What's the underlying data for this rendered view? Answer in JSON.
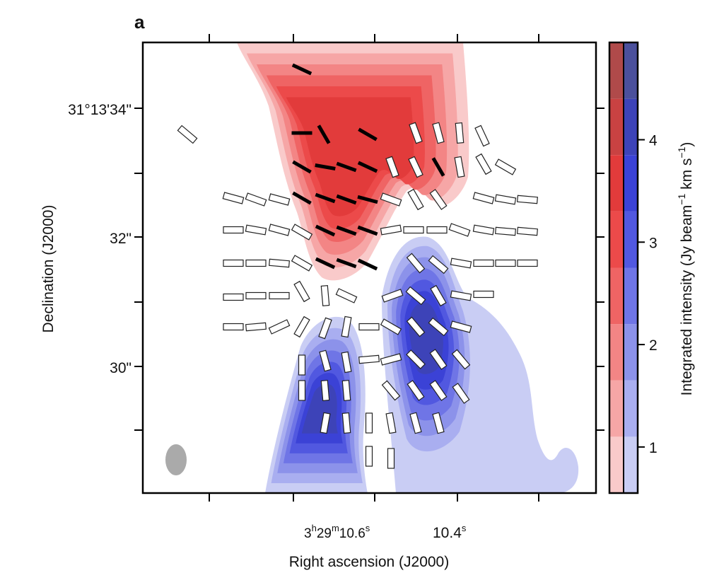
{
  "panel_label": "a",
  "x_axis_label": "Right ascension (J2000)",
  "y_axis_label": "Declination (J2000)",
  "x_tick_labels": [
    [
      "3",
      "h",
      "29",
      "m",
      "10.6",
      "s"
    ],
    [
      "10.4",
      "s"
    ]
  ],
  "y_tick_labels": [
    "31°13'34\"",
    "32\"",
    "30\""
  ],
  "colorbar": {
    "label_parts": [
      "Integrated intensity (Jy beam",
      "−1",
      " km s",
      "−1",
      ")"
    ],
    "ylim": [
      0.55,
      4.95
    ],
    "yticks": [
      1,
      2,
      3,
      4
    ],
    "levels": [
      0.55,
      1.1,
      1.65,
      2.2,
      2.75,
      3.3,
      3.85,
      4.4,
      4.95
    ],
    "red_colors": [
      "#f9caca",
      "#f6a6a6",
      "#f38585",
      "#ef6464",
      "#ec4a4a",
      "#e23b3b",
      "#c94242",
      "#b04a4a"
    ],
    "blue_colors": [
      "#c9cdf4",
      "#a9aef0",
      "#8c92ea",
      "#6f75e6",
      "#5158e0",
      "#3b42d6",
      "#3d43b8",
      "#4b509c"
    ]
  }
}
